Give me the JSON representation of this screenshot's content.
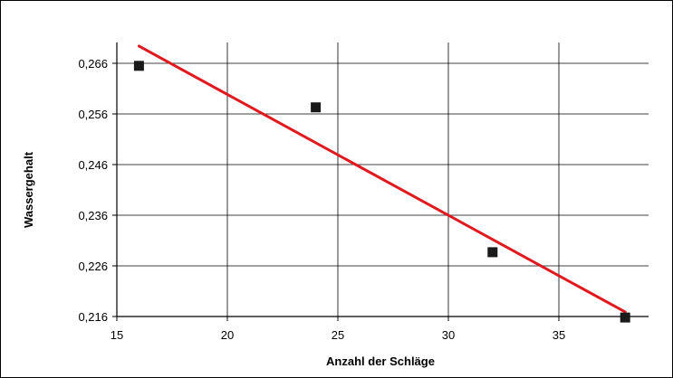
{
  "chart_data": {
    "type": "scatter",
    "title": "",
    "xlabel": "Anzahl der Schläge",
    "ylabel": "Wassergehalt",
    "xlim": [
      15,
      38.5
    ],
    "ylim": [
      0.216,
      0.2705
    ],
    "xticks": [
      15,
      20,
      25,
      30,
      35
    ],
    "xtick_labels": [
      "15",
      "20",
      "25",
      "30",
      "35"
    ],
    "yticks": [
      0.216,
      0.226,
      0.236,
      0.246,
      0.256,
      0.266
    ],
    "ytick_labels": [
      "0,216",
      "0,226",
      "0,236",
      "0,246",
      "0,256",
      "0,266"
    ],
    "grid": true,
    "series": [
      {
        "points": [
          {
            "x": 16,
            "y": 0.2655
          },
          {
            "x": 24,
            "y": 0.2573
          },
          {
            "x": 32,
            "y": 0.2287
          },
          {
            "x": 38,
            "y": 0.2158
          }
        ],
        "marker": "square",
        "color": "#1a1a1a"
      }
    ],
    "trendline": {
      "type": "linear",
      "color": "#e0191f",
      "start": {
        "x": 16,
        "y": 0.2694
      },
      "end": {
        "x": 38,
        "y": 0.2169
      }
    }
  }
}
